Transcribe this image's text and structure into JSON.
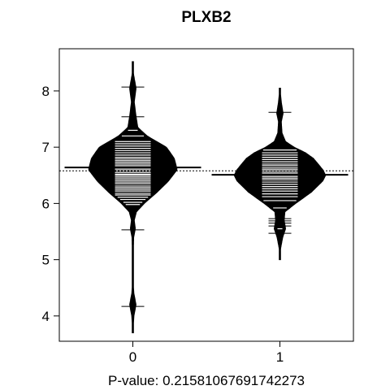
{
  "chart_data": {
    "type": "beanplot",
    "title": "PLXB2",
    "xlabel": "P-value: 0.21581067691742273",
    "ylabel": "",
    "ylim": [
      3.55,
      8.75
    ],
    "categories": [
      "0",
      "1"
    ],
    "y_ticks": [
      4,
      5,
      6,
      7,
      8
    ],
    "y_tick_labels": [
      "4",
      "5",
      "6",
      "7",
      "8"
    ],
    "overall_mean": 6.58,
    "grid": false,
    "groups": [
      {
        "category": "0",
        "mean": 6.64,
        "y_range": [
          3.7,
          8.52
        ],
        "density": [
          [
            3.7,
            0.0
          ],
          [
            4.0,
            0.015
          ],
          [
            4.2,
            0.045
          ],
          [
            4.4,
            0.015
          ],
          [
            4.6,
            0.005
          ],
          [
            5.0,
            0.005
          ],
          [
            5.4,
            0.012
          ],
          [
            5.55,
            0.035
          ],
          [
            5.7,
            0.02
          ],
          [
            5.85,
            0.05
          ],
          [
            6.0,
            0.16
          ],
          [
            6.2,
            0.34
          ],
          [
            6.4,
            0.5
          ],
          [
            6.6,
            0.62
          ],
          [
            6.8,
            0.58
          ],
          [
            7.0,
            0.47
          ],
          [
            7.2,
            0.2
          ],
          [
            7.35,
            0.07
          ],
          [
            7.55,
            0.045
          ],
          [
            7.8,
            0.02
          ],
          [
            8.05,
            0.045
          ],
          [
            8.3,
            0.01
          ],
          [
            8.52,
            0.0
          ]
        ],
        "observations": [
          4.17,
          5.53,
          5.98,
          6.02,
          6.07,
          6.11,
          6.15,
          6.18,
          6.22,
          6.25,
          6.28,
          6.31,
          6.35,
          6.38,
          6.41,
          6.44,
          6.47,
          6.5,
          6.52,
          6.55,
          6.58,
          6.61,
          6.64,
          6.67,
          6.7,
          6.73,
          6.76,
          6.79,
          6.82,
          6.86,
          6.9,
          6.94,
          6.98,
          7.02,
          7.06,
          7.1,
          7.2,
          7.3,
          7.54,
          8.07
        ]
      },
      {
        "category": "1",
        "mean": 6.51,
        "y_range": [
          5.0,
          8.05
        ],
        "density": [
          [
            5.0,
            0.0
          ],
          [
            5.2,
            0.01
          ],
          [
            5.4,
            0.04
          ],
          [
            5.55,
            0.08
          ],
          [
            5.7,
            0.06
          ],
          [
            5.85,
            0.07
          ],
          [
            6.0,
            0.22
          ],
          [
            6.2,
            0.44
          ],
          [
            6.4,
            0.6
          ],
          [
            6.5,
            0.64
          ],
          [
            6.6,
            0.6
          ],
          [
            6.8,
            0.47
          ],
          [
            6.9,
            0.36
          ],
          [
            7.0,
            0.2
          ],
          [
            7.1,
            0.08
          ],
          [
            7.25,
            0.03
          ],
          [
            7.45,
            0.02
          ],
          [
            7.6,
            0.045
          ],
          [
            7.8,
            0.02
          ],
          [
            8.05,
            0.0
          ]
        ],
        "observations": [
          5.47,
          5.55,
          5.6,
          5.65,
          5.69,
          5.73,
          5.92,
          6.05,
          6.12,
          6.17,
          6.22,
          6.26,
          6.3,
          6.34,
          6.38,
          6.42,
          6.45,
          6.48,
          6.51,
          6.54,
          6.57,
          6.6,
          6.63,
          6.67,
          6.7,
          6.74,
          6.78,
          6.82,
          6.86,
          6.9,
          6.95,
          7.62
        ]
      }
    ]
  }
}
